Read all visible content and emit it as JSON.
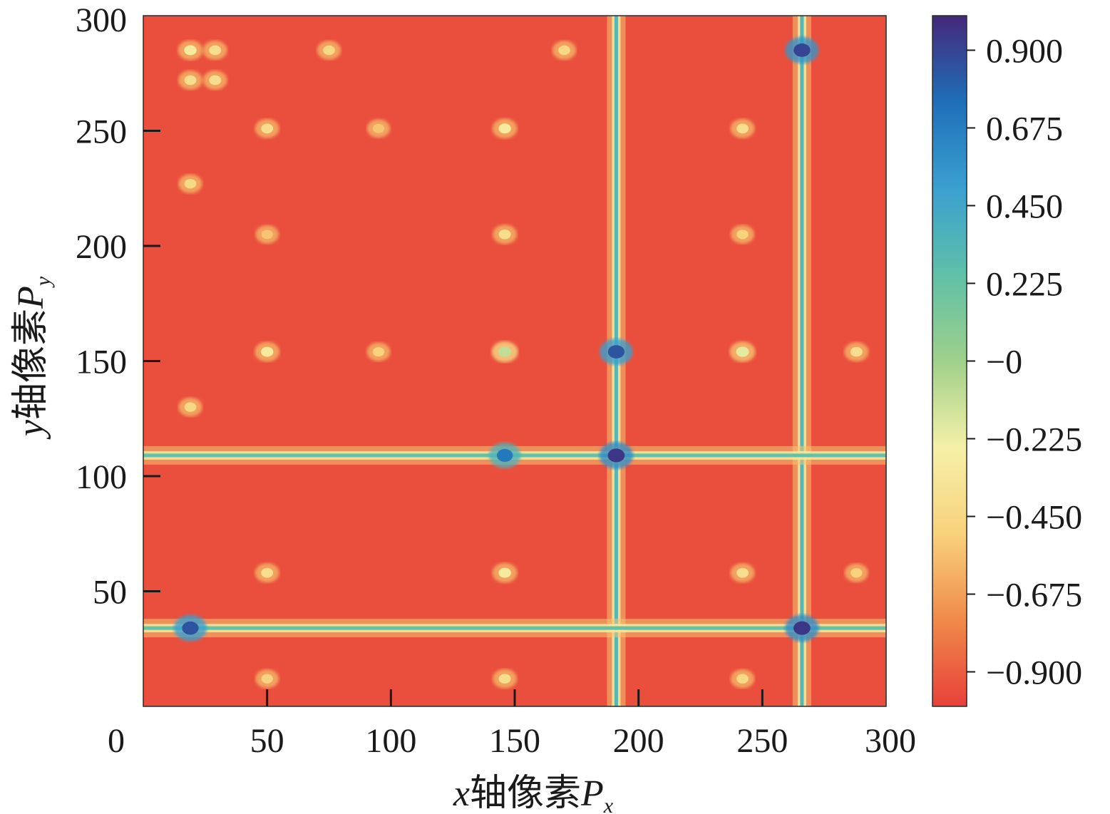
{
  "chart_data": {
    "type": "heatmap",
    "title": "",
    "xlabel": "x轴像素P",
    "xlabel_parts": {
      "var": "x",
      "text": "轴像素",
      "sym": "P",
      "sub": "x"
    },
    "ylabel": "y轴像素P",
    "ylabel_parts": {
      "var": "y",
      "text": "轴像素",
      "sym": "P",
      "sub": "y"
    },
    "xlim": [
      0,
      300
    ],
    "ylim": [
      0,
      300
    ],
    "x_ticks": [
      "0",
      "50",
      "100",
      "150",
      "200",
      "250",
      "300"
    ],
    "y_ticks": [
      "50",
      "100",
      "150",
      "200",
      "250",
      "300"
    ],
    "colorbar": {
      "range": [
        -1.0,
        1.0
      ],
      "tick_values": [
        0.9,
        0.675,
        0.45,
        0.225,
        0,
        -0.225,
        -0.45,
        -0.675,
        -0.9
      ],
      "tick_labels": [
        "0.900",
        "0.675",
        "0.450",
        "0.225",
        "−0",
        "−0.225",
        "−0.450",
        "−0.675",
        "−0.900"
      ],
      "colormap": [
        "#e8403a",
        "#f08a4a",
        "#f8d27c",
        "#f5f0a8",
        "#9fd08a",
        "#5fc0a8",
        "#3aa0d0",
        "#1f6fb8",
        "#45287a"
      ]
    },
    "background_value": -0.95,
    "vertical_lines": [
      {
        "x": 191,
        "peak": 0.8
      },
      {
        "x": 266,
        "peak": 0.8
      }
    ],
    "horizontal_lines": [
      {
        "y": 109,
        "peak": 0.6
      },
      {
        "y": 34,
        "peak": 0.6
      }
    ],
    "hotspots": [
      {
        "x": 191,
        "y": 109,
        "value": 0.95
      },
      {
        "x": 266,
        "y": 34,
        "value": 0.95
      },
      {
        "x": 266,
        "y": 285,
        "value": 0.9
      },
      {
        "x": 191,
        "y": 154,
        "value": 0.85
      },
      {
        "x": 19,
        "y": 34,
        "value": 0.85
      },
      {
        "x": 146,
        "y": 109,
        "value": 0.7
      },
      {
        "x": 19,
        "y": 285,
        "value": -0.3
      },
      {
        "x": 29,
        "y": 285,
        "value": -0.4
      },
      {
        "x": 19,
        "y": 272,
        "value": -0.4
      },
      {
        "x": 29,
        "y": 272,
        "value": -0.4
      },
      {
        "x": 50,
        "y": 154,
        "value": -0.3
      },
      {
        "x": 146,
        "y": 154,
        "value": -0.1
      },
      {
        "x": 242,
        "y": 154,
        "value": -0.2
      },
      {
        "x": 288,
        "y": 154,
        "value": -0.4
      },
      {
        "x": 50,
        "y": 251,
        "value": -0.4
      },
      {
        "x": 146,
        "y": 251,
        "value": -0.3
      },
      {
        "x": 242,
        "y": 251,
        "value": -0.4
      },
      {
        "x": 50,
        "y": 58,
        "value": -0.4
      },
      {
        "x": 146,
        "y": 58,
        "value": -0.3
      },
      {
        "x": 242,
        "y": 58,
        "value": -0.4
      },
      {
        "x": 288,
        "y": 58,
        "value": -0.5
      },
      {
        "x": 146,
        "y": 205,
        "value": -0.4
      },
      {
        "x": 242,
        "y": 205,
        "value": -0.5
      },
      {
        "x": 50,
        "y": 205,
        "value": -0.55
      },
      {
        "x": 146,
        "y": 12,
        "value": -0.4
      },
      {
        "x": 242,
        "y": 12,
        "value": -0.45
      },
      {
        "x": 50,
        "y": 12,
        "value": -0.5
      },
      {
        "x": 75,
        "y": 285,
        "value": -0.45
      },
      {
        "x": 170,
        "y": 285,
        "value": -0.45
      },
      {
        "x": 19,
        "y": 130,
        "value": -0.45
      },
      {
        "x": 19,
        "y": 227,
        "value": -0.45
      },
      {
        "x": 95,
        "y": 154,
        "value": -0.5
      },
      {
        "x": 95,
        "y": 251,
        "value": -0.55
      }
    ]
  }
}
